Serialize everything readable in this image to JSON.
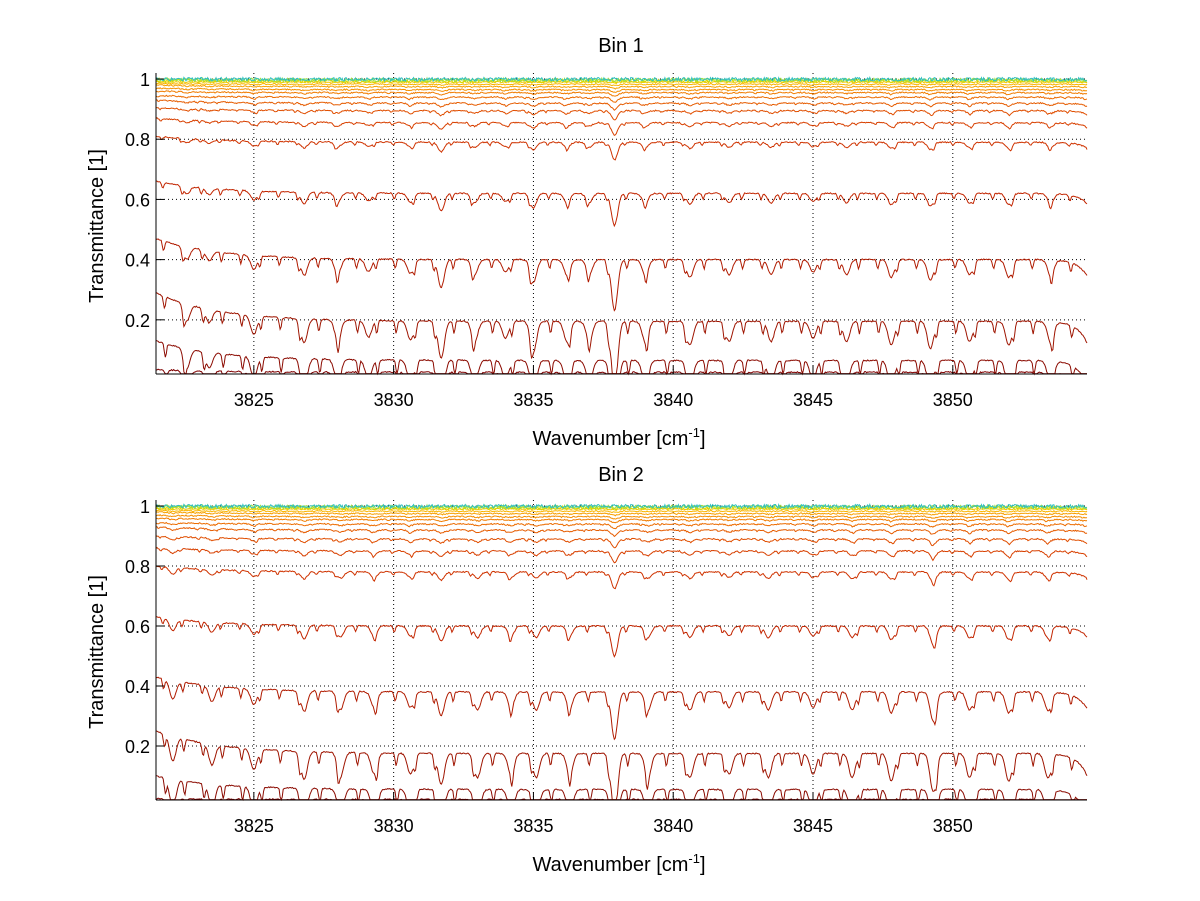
{
  "chart_data": [
    {
      "type": "line",
      "title": "Bin 1",
      "xlabel": "Wavenumber [cm",
      "xlabel_sup": "-1",
      "xlabel_close": "]",
      "ylabel": "Transmittance [1]",
      "xlim": [
        3821.5,
        3854.8
      ],
      "ylim": [
        0.02,
        1.02
      ],
      "xticks": [
        3825,
        3830,
        3835,
        3840,
        3845,
        3850
      ],
      "xtick_labels": [
        "3825",
        "3830",
        "3835",
        "3840",
        "3845",
        "3850"
      ],
      "yticks": [
        0.2,
        0.4,
        0.6,
        0.8,
        1
      ],
      "ytick_labels": [
        "0.2",
        "0.4",
        "0.6",
        "0.8",
        "1"
      ],
      "grid": true,
      "series_baselines": [
        0.026,
        0.065,
        0.195,
        0.4,
        0.62,
        0.79,
        0.855,
        0.895,
        0.92,
        0.94,
        0.955,
        0.965,
        0.975,
        0.983,
        0.99,
        0.994,
        0.997,
        0.999
      ],
      "series_start_values": [
        0.035,
        0.13,
        0.29,
        0.47,
        0.66,
        0.81,
        0.87,
        0.905,
        0.93,
        0.945,
        0.96,
        0.97,
        0.98,
        0.985,
        0.99,
        0.995,
        0.998,
        1.0
      ],
      "series_colors": [
        "#7f0000",
        "#8b0a00",
        "#9e1400",
        "#b01b00",
        "#c22500",
        "#cf3300",
        "#d84000",
        "#e04e00",
        "#e65c00",
        "#ec6c00",
        "#f07c00",
        "#f48e00",
        "#f7a000",
        "#f9b400",
        "#f2c800",
        "#d8d800",
        "#9ee040",
        "#30c0c0"
      ],
      "absorption_lines": [
        {
          "x": 3822.6,
          "depth": 0.25
        },
        {
          "x": 3823.4,
          "depth": 0.2
        },
        {
          "x": 3825.0,
          "depth": 0.28
        },
        {
          "x": 3826.8,
          "depth": 0.35
        },
        {
          "x": 3828.0,
          "depth": 0.3
        },
        {
          "x": 3829.1,
          "depth": 0.25
        },
        {
          "x": 3830.6,
          "depth": 0.28
        },
        {
          "x": 3831.7,
          "depth": 0.55
        },
        {
          "x": 3832.9,
          "depth": 0.3
        },
        {
          "x": 3834.0,
          "depth": 0.25
        },
        {
          "x": 3835.0,
          "depth": 0.45
        },
        {
          "x": 3836.2,
          "depth": 0.3
        },
        {
          "x": 3837.0,
          "depth": 0.28
        },
        {
          "x": 3837.9,
          "depth": 1.0
        },
        {
          "x": 3839.0,
          "depth": 0.3
        },
        {
          "x": 3840.6,
          "depth": 0.35
        },
        {
          "x": 3842.0,
          "depth": 0.3
        },
        {
          "x": 3843.5,
          "depth": 0.3
        },
        {
          "x": 3845.0,
          "depth": 0.25
        },
        {
          "x": 3846.2,
          "depth": 0.3
        },
        {
          "x": 3847.8,
          "depth": 0.35
        },
        {
          "x": 3849.2,
          "depth": 0.4
        },
        {
          "x": 3850.6,
          "depth": 0.3
        },
        {
          "x": 3852.0,
          "depth": 0.35
        },
        {
          "x": 3853.5,
          "depth": 0.3
        }
      ]
    },
    {
      "type": "line",
      "title": "Bin 2",
      "xlabel": "Wavenumber [cm",
      "xlabel_sup": "-1",
      "xlabel_close": "]",
      "ylabel": "Transmittance [1]",
      "xlim": [
        3821.5,
        3854.8
      ],
      "ylim": [
        0.02,
        1.02
      ],
      "xticks": [
        3825,
        3830,
        3835,
        3840,
        3845,
        3850
      ],
      "xtick_labels": [
        "3825",
        "3830",
        "3835",
        "3840",
        "3845",
        "3850"
      ],
      "yticks": [
        0.2,
        0.4,
        0.6,
        0.8,
        1
      ],
      "ytick_labels": [
        "0.2",
        "0.4",
        "0.6",
        "0.8",
        "1"
      ],
      "grid": true,
      "series_baselines": [
        0.022,
        0.055,
        0.175,
        0.38,
        0.6,
        0.78,
        0.85,
        0.89,
        0.92,
        0.94,
        0.955,
        0.965,
        0.975,
        0.983,
        0.99,
        0.994,
        0.997,
        0.999
      ],
      "series_start_values": [
        0.025,
        0.1,
        0.25,
        0.43,
        0.63,
        0.8,
        0.86,
        0.9,
        0.93,
        0.945,
        0.96,
        0.97,
        0.98,
        0.985,
        0.99,
        0.995,
        0.998,
        1.0
      ],
      "series_colors": [
        "#7f0000",
        "#8b0a00",
        "#9e1400",
        "#b01b00",
        "#c22500",
        "#cf3300",
        "#d84000",
        "#e04e00",
        "#e65c00",
        "#ec6c00",
        "#f07c00",
        "#f48e00",
        "#f7a000",
        "#f9b400",
        "#f2c800",
        "#d8d800",
        "#9ee040",
        "#30c0c0"
      ],
      "absorption_lines": [
        {
          "x": 3822.1,
          "depth": 0.35
        },
        {
          "x": 3823.5,
          "depth": 0.3
        },
        {
          "x": 3825.0,
          "depth": 0.3
        },
        {
          "x": 3826.8,
          "depth": 0.4
        },
        {
          "x": 3828.1,
          "depth": 0.35
        },
        {
          "x": 3829.3,
          "depth": 0.3
        },
        {
          "x": 3830.6,
          "depth": 0.3
        },
        {
          "x": 3831.7,
          "depth": 0.45
        },
        {
          "x": 3833.0,
          "depth": 0.35
        },
        {
          "x": 3834.2,
          "depth": 0.3
        },
        {
          "x": 3835.1,
          "depth": 0.35
        },
        {
          "x": 3836.3,
          "depth": 0.3
        },
        {
          "x": 3837.9,
          "depth": 0.9
        },
        {
          "x": 3839.1,
          "depth": 0.35
        },
        {
          "x": 3840.6,
          "depth": 0.35
        },
        {
          "x": 3842.0,
          "depth": 0.3
        },
        {
          "x": 3843.4,
          "depth": 0.35
        },
        {
          "x": 3845.0,
          "depth": 0.3
        },
        {
          "x": 3846.4,
          "depth": 0.35
        },
        {
          "x": 3847.8,
          "depth": 0.4
        },
        {
          "x": 3849.3,
          "depth": 0.55
        },
        {
          "x": 3850.6,
          "depth": 0.35
        },
        {
          "x": 3852.0,
          "depth": 0.4
        },
        {
          "x": 3853.4,
          "depth": 0.35
        }
      ]
    }
  ]
}
